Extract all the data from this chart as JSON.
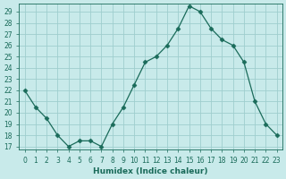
{
  "x": [
    0,
    1,
    2,
    3,
    4,
    5,
    6,
    7,
    8,
    9,
    10,
    11,
    12,
    13,
    14,
    15,
    16,
    17,
    18,
    19,
    20,
    21,
    22,
    23
  ],
  "y": [
    22,
    20.5,
    19.5,
    18,
    17,
    17.5,
    17.5,
    17,
    19,
    20.5,
    22.5,
    24.5,
    25,
    26,
    27.5,
    29.5,
    29,
    27.5,
    26.5,
    26,
    24.5,
    21,
    19,
    18
  ],
  "line_color": "#1a6b5a",
  "marker": "D",
  "marker_size": 2.5,
  "bg_color": "#c8eaea",
  "grid_color": "#9fcece",
  "xlabel": "Humidex (Indice chaleur)",
  "xlim": [
    -0.5,
    23.5
  ],
  "ylim": [
    16.7,
    29.7
  ],
  "yticks": [
    17,
    18,
    19,
    20,
    21,
    22,
    23,
    24,
    25,
    26,
    27,
    28,
    29
  ],
  "xticks": [
    0,
    1,
    2,
    3,
    4,
    5,
    6,
    7,
    8,
    9,
    10,
    11,
    12,
    13,
    14,
    15,
    16,
    17,
    18,
    19,
    20,
    21,
    22,
    23
  ],
  "label_fontsize": 6.5,
  "tick_fontsize": 5.5
}
